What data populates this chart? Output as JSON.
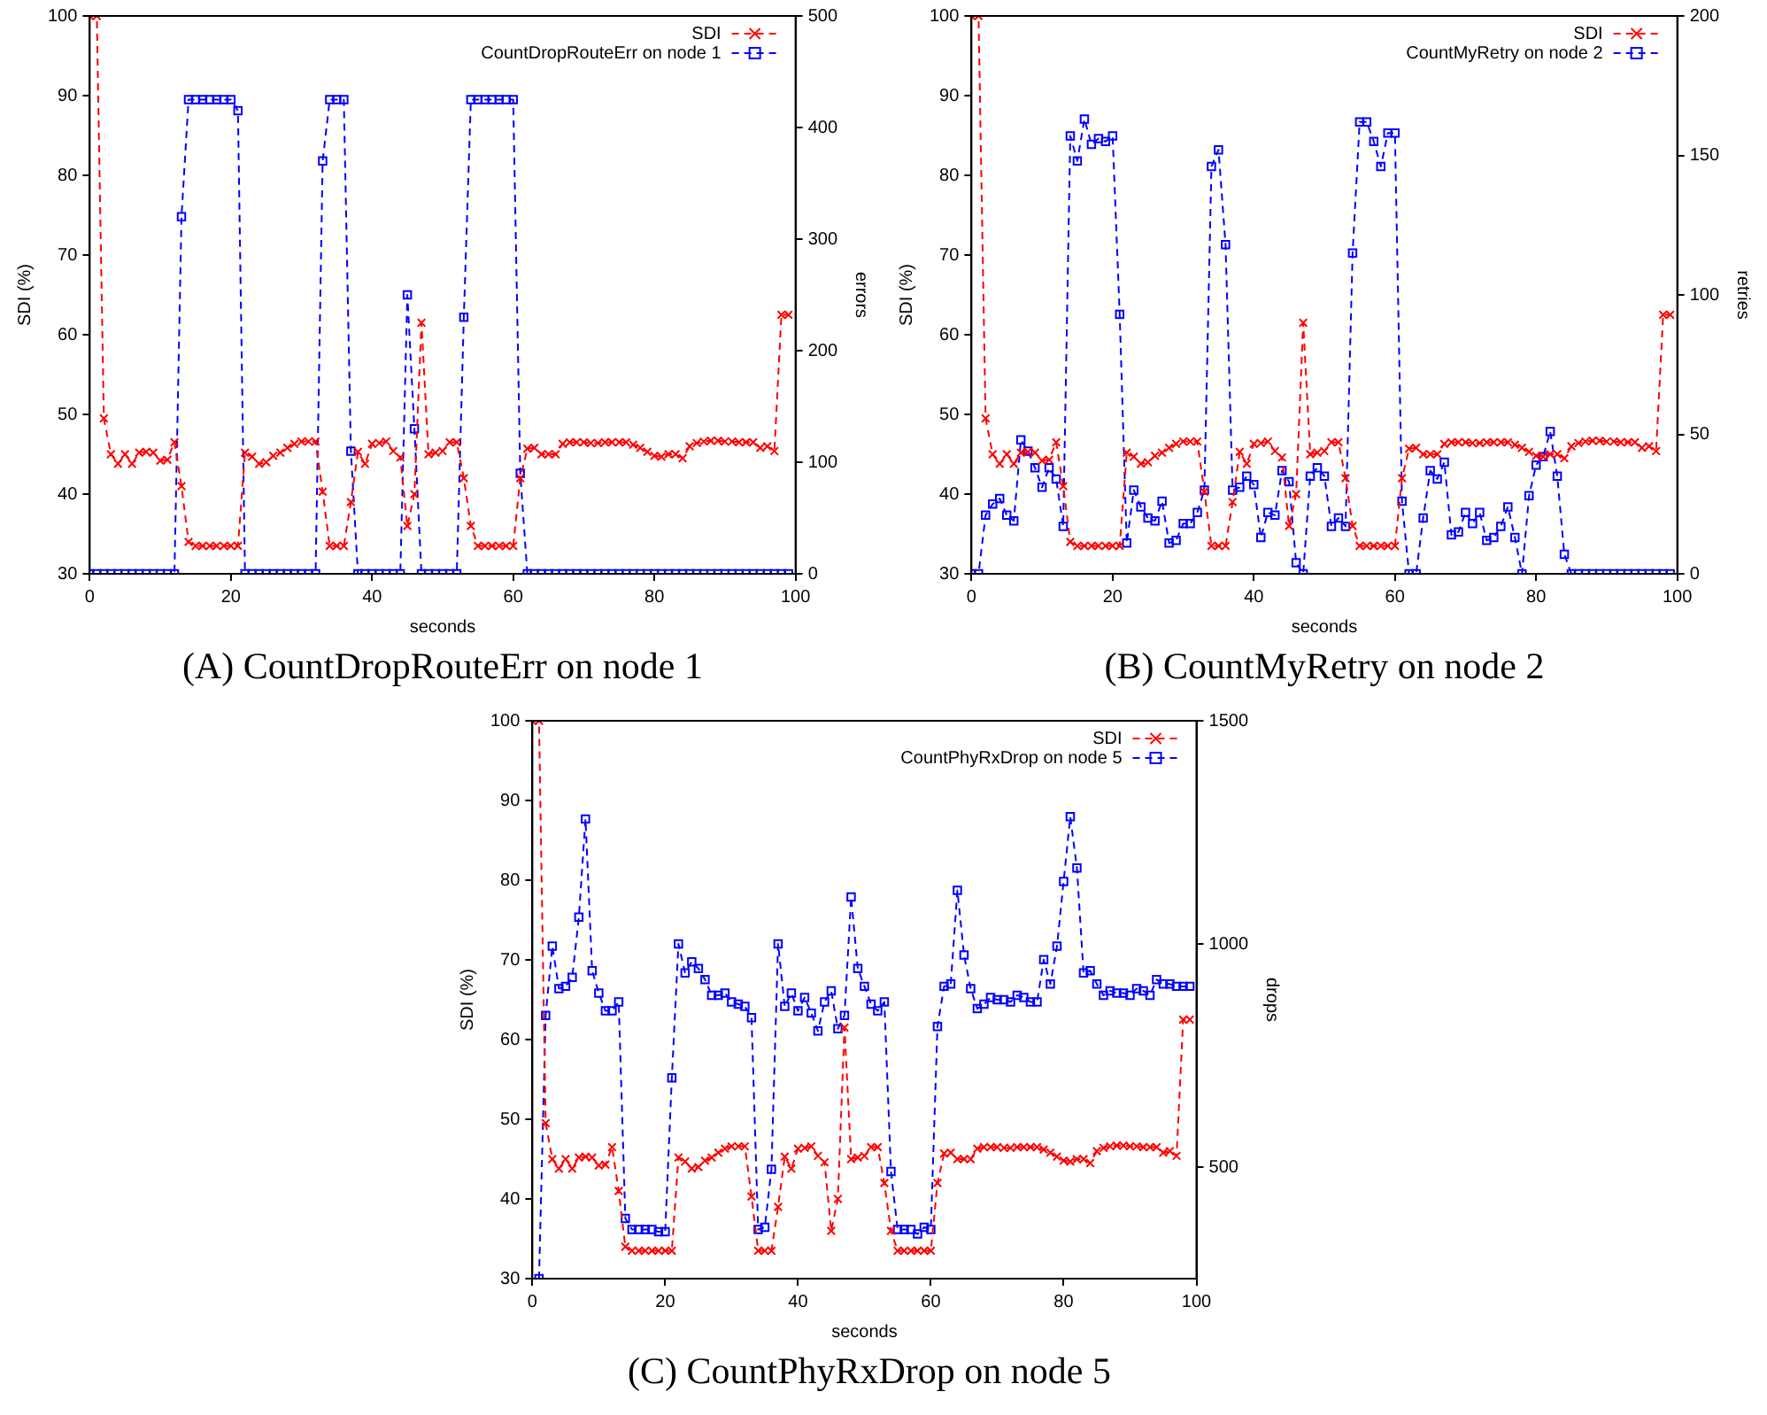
{
  "chart_data": [
    {
      "type": "line",
      "title": "(A) CountDropRouteErr on node 1",
      "xlabel": "seconds",
      "ylabel": "SDI (%)",
      "y2label": "errors",
      "legend": "top right",
      "x": [
        0,
        1,
        2,
        3,
        4,
        5,
        6,
        7,
        8,
        9,
        10,
        11,
        12,
        13,
        14,
        15,
        16,
        17,
        18,
        19,
        20,
        21,
        22,
        23,
        24,
        25,
        26,
        27,
        28,
        29,
        30,
        31,
        32,
        33,
        34,
        35,
        36,
        37,
        38,
        39,
        40,
        41,
        42,
        43,
        44,
        45,
        46,
        47,
        48,
        49,
        50,
        51,
        52,
        53,
        54,
        55,
        56,
        57,
        58,
        59,
        60,
        61,
        62,
        63,
        64,
        65,
        66,
        67,
        68,
        69,
        70,
        71,
        72,
        73,
        74,
        75,
        76,
        77,
        78,
        79,
        80,
        81,
        82,
        83,
        84,
        85,
        86,
        87,
        88,
        89,
        90,
        91,
        92,
        93,
        94,
        95,
        96,
        97,
        98,
        99
      ],
      "xlim": [
        0,
        100
      ],
      "xticks": [
        0,
        20,
        40,
        60,
        80,
        100
      ],
      "ylim": [
        30,
        100
      ],
      "yticks": [
        30,
        40,
        50,
        60,
        70,
        80,
        90,
        100
      ],
      "y2lim": [
        0,
        500
      ],
      "y2ticks": [
        0,
        100,
        200,
        300,
        400,
        500
      ],
      "series": [
        {
          "name": "SDI",
          "color": "#ff0000",
          "marker": "cross",
          "line_style": "dashed",
          "values": [
            100,
            100,
            49.5,
            45,
            43.8,
            45,
            43.8,
            45.2,
            45.3,
            45.2,
            44.2,
            44.3,
            46.5,
            41,
            34,
            33.5,
            33.5,
            33.5,
            33.5,
            33.5,
            33.5,
            33.5,
            45.2,
            44.7,
            43.8,
            44,
            44.8,
            45.2,
            45.8,
            46.3,
            46.6,
            46.6,
            46.6,
            40.3,
            33.5,
            33.5,
            33.5,
            39,
            45.3,
            43.8,
            46.3,
            46.4,
            46.6,
            45.4,
            44.6,
            36,
            40,
            61.5,
            45,
            45.2,
            45.4,
            46.5,
            46.5,
            42,
            36,
            33.5,
            33.5,
            33.5,
            33.5,
            33.5,
            33.5,
            42,
            45.7,
            45.8,
            45,
            45,
            45,
            46.3,
            46.5,
            46.5,
            46.5,
            46.4,
            46.4,
            46.5,
            46.5,
            46.5,
            46.5,
            46.2,
            45.8,
            45.3,
            44.8,
            44.7,
            45,
            45,
            44.5,
            46,
            46.4,
            46.6,
            46.7,
            46.7,
            46.6,
            46.6,
            46.5,
            46.5,
            46.5,
            45.8,
            46,
            45.4,
            62.5,
            62.5
          ]
        },
        {
          "name": "CountDropRouteErr on node 1",
          "color": "#0000ff",
          "marker": "square",
          "line_style": "dashed",
          "axis": "y2",
          "values": [
            0,
            0,
            0,
            0,
            0,
            0,
            0,
            0,
            0,
            0,
            0,
            0,
            0,
            320,
            425,
            425,
            425,
            425,
            425,
            425,
            425,
            415,
            0,
            0,
            0,
            0,
            0,
            0,
            0,
            0,
            0,
            0,
            0,
            370,
            425,
            425,
            425,
            110,
            0,
            0,
            0,
            0,
            0,
            0,
            0,
            250,
            130,
            0,
            0,
            0,
            0,
            0,
            0,
            230,
            425,
            425,
            425,
            425,
            425,
            425,
            425,
            90,
            0,
            0,
            0,
            0,
            0,
            0,
            0,
            0,
            0,
            0,
            0,
            0,
            0,
            0,
            0,
            0,
            0,
            0,
            0,
            0,
            0,
            0,
            0,
            0,
            0,
            0,
            0,
            0,
            0,
            0,
            0,
            0,
            0,
            0,
            0,
            0,
            0,
            0
          ]
        }
      ]
    },
    {
      "type": "line",
      "title": "(B) CountMyRetry on node 2",
      "xlabel": "seconds",
      "ylabel": "SDI (%)",
      "y2label": "retries",
      "legend": "top right",
      "x": [
        0,
        1,
        2,
        3,
        4,
        5,
        6,
        7,
        8,
        9,
        10,
        11,
        12,
        13,
        14,
        15,
        16,
        17,
        18,
        19,
        20,
        21,
        22,
        23,
        24,
        25,
        26,
        27,
        28,
        29,
        30,
        31,
        32,
        33,
        34,
        35,
        36,
        37,
        38,
        39,
        40,
        41,
        42,
        43,
        44,
        45,
        46,
        47,
        48,
        49,
        50,
        51,
        52,
        53,
        54,
        55,
        56,
        57,
        58,
        59,
        60,
        61,
        62,
        63,
        64,
        65,
        66,
        67,
        68,
        69,
        70,
        71,
        72,
        73,
        74,
        75,
        76,
        77,
        78,
        79,
        80,
        81,
        82,
        83,
        84,
        85,
        86,
        87,
        88,
        89,
        90,
        91,
        92,
        93,
        94,
        95,
        96,
        97,
        98,
        99
      ],
      "xlim": [
        0,
        100
      ],
      "xticks": [
        0,
        20,
        40,
        60,
        80,
        100
      ],
      "ylim": [
        30,
        100
      ],
      "yticks": [
        30,
        40,
        50,
        60,
        70,
        80,
        90,
        100
      ],
      "y2lim": [
        0,
        200
      ],
      "y2ticks": [
        0,
        50,
        100,
        150,
        200
      ],
      "series": [
        {
          "name": "SDI",
          "color": "#ff0000",
          "marker": "cross",
          "line_style": "dashed",
          "values": [
            100,
            100,
            49.5,
            45,
            43.8,
            45,
            43.8,
            45.2,
            45.3,
            45.2,
            44.2,
            44.3,
            46.5,
            41,
            34,
            33.5,
            33.5,
            33.5,
            33.5,
            33.5,
            33.5,
            33.5,
            45.2,
            44.7,
            43.8,
            44,
            44.8,
            45.2,
            45.8,
            46.3,
            46.6,
            46.6,
            46.6,
            40.3,
            33.5,
            33.5,
            33.5,
            39,
            45.3,
            43.8,
            46.3,
            46.4,
            46.6,
            45.4,
            44.6,
            36,
            40,
            61.5,
            45,
            45.2,
            45.4,
            46.5,
            46.5,
            42,
            36,
            33.5,
            33.5,
            33.5,
            33.5,
            33.5,
            33.5,
            42,
            45.7,
            45.8,
            45,
            45,
            45,
            46.3,
            46.5,
            46.5,
            46.5,
            46.4,
            46.4,
            46.5,
            46.5,
            46.5,
            46.5,
            46.2,
            45.8,
            45.3,
            44.8,
            44.7,
            45,
            45,
            44.5,
            46,
            46.4,
            46.6,
            46.7,
            46.7,
            46.6,
            46.6,
            46.5,
            46.5,
            46.5,
            45.8,
            46,
            45.4,
            62.5,
            62.5
          ]
        },
        {
          "name": "CountMyRetry on node 2",
          "color": "#0000ff",
          "marker": "square",
          "line_style": "dashed",
          "axis": "y2",
          "values": [
            0,
            0,
            21,
            25,
            27,
            21,
            19,
            48,
            44,
            38,
            31,
            38,
            34,
            17,
            157,
            148,
            163,
            154,
            156,
            155,
            157,
            93,
            11,
            30,
            24,
            20,
            19,
            26,
            11,
            12,
            18,
            18,
            22,
            30,
            146,
            152,
            118,
            30,
            31,
            35,
            32,
            13,
            22,
            21,
            37,
            33,
            4,
            0,
            35,
            38,
            35,
            17,
            20,
            17,
            115,
            162,
            162,
            155,
            146,
            158,
            158,
            26,
            0,
            0,
            20,
            37,
            34,
            40,
            14,
            15,
            22,
            18,
            22,
            12,
            13,
            17,
            24,
            13,
            0,
            28,
            39,
            42,
            51,
            35,
            7,
            0,
            0,
            0,
            0,
            0,
            0,
            0,
            0,
            0,
            0,
            0,
            0,
            0,
            0,
            0
          ]
        }
      ]
    },
    {
      "type": "line",
      "title": "(C) CountPhyRxDrop on node 5",
      "xlabel": "seconds",
      "ylabel": "SDI (%)",
      "y2label": "drops",
      "legend": "top right",
      "x": [
        0,
        1,
        2,
        3,
        4,
        5,
        6,
        7,
        8,
        9,
        10,
        11,
        12,
        13,
        14,
        15,
        16,
        17,
        18,
        19,
        20,
        21,
        22,
        23,
        24,
        25,
        26,
        27,
        28,
        29,
        30,
        31,
        32,
        33,
        34,
        35,
        36,
        37,
        38,
        39,
        40,
        41,
        42,
        43,
        44,
        45,
        46,
        47,
        48,
        49,
        50,
        51,
        52,
        53,
        54,
        55,
        56,
        57,
        58,
        59,
        60,
        61,
        62,
        63,
        64,
        65,
        66,
        67,
        68,
        69,
        70,
        71,
        72,
        73,
        74,
        75,
        76,
        77,
        78,
        79,
        80,
        81,
        82,
        83,
        84,
        85,
        86,
        87,
        88,
        89,
        90,
        91,
        92,
        93,
        94,
        95,
        96,
        97,
        98,
        99
      ],
      "xlim": [
        0,
        100
      ],
      "xticks": [
        0,
        20,
        40,
        60,
        80,
        100
      ],
      "ylim": [
        30,
        100
      ],
      "yticks": [
        30,
        40,
        50,
        60,
        70,
        80,
        90,
        100
      ],
      "y2lim": [
        250,
        1500
      ],
      "y2ticks": [
        500,
        1000,
        1500
      ],
      "series": [
        {
          "name": "SDI",
          "color": "#ff0000",
          "marker": "cross",
          "line_style": "dashed",
          "values": [
            100,
            100,
            49.5,
            45,
            43.8,
            45,
            43.8,
            45.2,
            45.3,
            45.2,
            44.2,
            44.3,
            46.5,
            41,
            34,
            33.5,
            33.5,
            33.5,
            33.5,
            33.5,
            33.5,
            33.5,
            45.2,
            44.7,
            43.8,
            44,
            44.8,
            45.2,
            45.8,
            46.3,
            46.6,
            46.6,
            46.6,
            40.3,
            33.5,
            33.5,
            33.5,
            39,
            45.3,
            43.8,
            46.3,
            46.4,
            46.6,
            45.4,
            44.6,
            36,
            40,
            61.5,
            45,
            45.2,
            45.4,
            46.5,
            46.5,
            42,
            36,
            33.5,
            33.5,
            33.5,
            33.5,
            33.5,
            33.5,
            42,
            45.7,
            45.8,
            45,
            45,
            45,
            46.3,
            46.5,
            46.5,
            46.5,
            46.4,
            46.4,
            46.5,
            46.5,
            46.5,
            46.5,
            46.2,
            45.8,
            45.3,
            44.8,
            44.7,
            45,
            45,
            44.5,
            46,
            46.4,
            46.6,
            46.7,
            46.7,
            46.6,
            46.6,
            46.5,
            46.5,
            46.5,
            45.8,
            46,
            45.4,
            62.5,
            62.5
          ]
        },
        {
          "name": "CountPhyRxDrop on node 5",
          "color": "#0000ff",
          "marker": "square",
          "line_style": "dashed",
          "axis": "y2",
          "values": [
            null,
            250,
            840,
            995,
            900,
            905,
            925,
            1060,
            1280,
            940,
            890,
            850,
            850,
            870,
            385,
            360,
            360,
            360,
            360,
            355,
            355,
            700,
            1000,
            935,
            960,
            945,
            920,
            885,
            885,
            890,
            870,
            865,
            860,
            835,
            360,
            365,
            495,
            1000,
            860,
            890,
            850,
            880,
            845,
            805,
            870,
            895,
            810,
            840,
            1105,
            945,
            905,
            865,
            850,
            870,
            490,
            360,
            360,
            360,
            350,
            365,
            360,
            815,
            905,
            910,
            1120,
            975,
            900,
            855,
            865,
            880,
            875,
            875,
            870,
            885,
            880,
            870,
            870,
            965,
            910,
            995,
            1140,
            1285,
            1170,
            935,
            940,
            910,
            885,
            895,
            890,
            890,
            885,
            900,
            895,
            885,
            920,
            910,
            910,
            905,
            905,
            905
          ]
        }
      ]
    }
  ]
}
